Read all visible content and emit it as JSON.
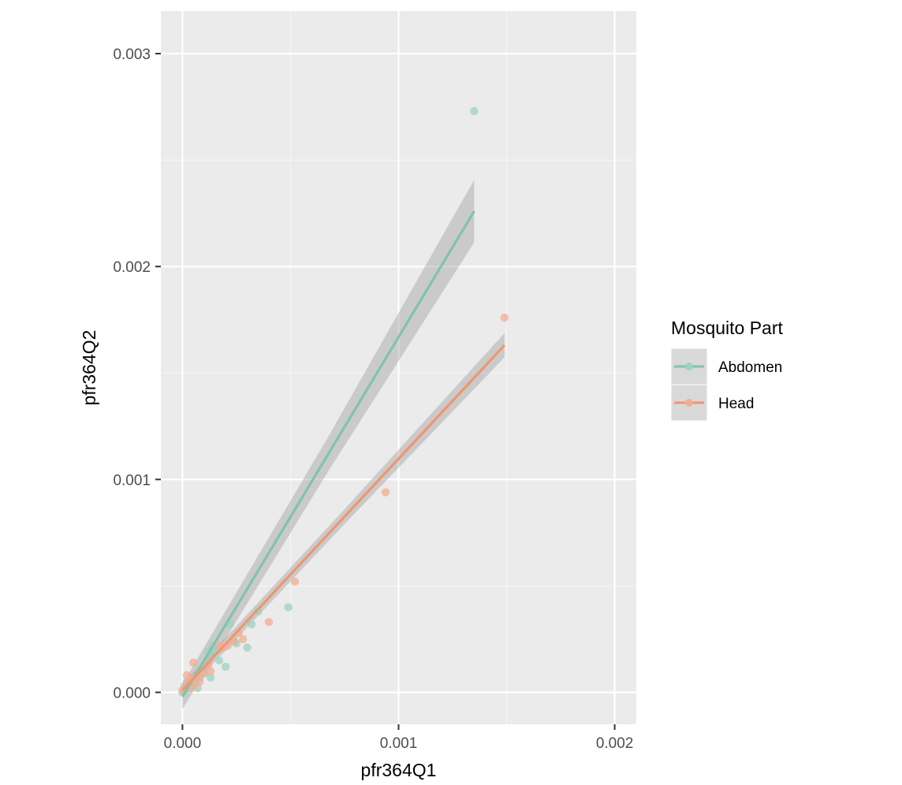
{
  "chart_data": {
    "type": "scatter",
    "title": "",
    "xlabel": "pfr364Q1",
    "ylabel": "pfr364Q2",
    "xlim": [
      -0.0001,
      0.0021
    ],
    "ylim": [
      -0.00015,
      0.0032
    ],
    "x_ticks": [
      0.0,
      0.001,
      0.002
    ],
    "x_tick_labels": [
      "0.000",
      "0.001",
      "0.002"
    ],
    "y_ticks": [
      0.0,
      0.001,
      0.002,
      0.003
    ],
    "y_tick_labels": [
      "0.000",
      "0.001",
      "0.002",
      "0.003"
    ],
    "x_minor": [
      -0.0005,
      0.0005,
      0.0015
    ],
    "y_minor": [
      0.0005,
      0.0015,
      0.0025
    ],
    "grid": true,
    "background": "#ebebeb",
    "legend": {
      "title": "Mosquito Part",
      "position": "right"
    },
    "series": [
      {
        "name": "Abdomen",
        "color": "#7fc4ab",
        "point_color": "#9fd1bf",
        "points": [
          [
            0.0,
            0.0
          ],
          [
            1e-05,
            1e-05
          ],
          [
            2e-05,
            2e-05
          ],
          [
            1e-05,
            3e-05
          ],
          [
            3e-05,
            2e-05
          ],
          [
            2e-05,
            5e-05
          ],
          [
            4e-05,
            4e-05
          ],
          [
            5e-05,
            3e-05
          ],
          [
            6e-05,
            6e-05
          ],
          [
            7e-05,
            2e-05
          ],
          [
            8e-05,
            7e-05
          ],
          [
            8e-05,
            0.00011
          ],
          [
            0.0001,
            9e-05
          ],
          [
            0.00011,
            0.00013
          ],
          [
            0.00012,
            0.00016
          ],
          [
            0.00012,
            0.00019
          ],
          [
            0.00013,
            7e-05
          ],
          [
            0.00014,
            0.0002
          ],
          [
            0.00014,
            0.00022
          ],
          [
            0.00016,
            0.0002
          ],
          [
            0.00017,
            0.00015
          ],
          [
            0.0002,
            0.00012
          ],
          [
            0.00022,
            0.00032
          ],
          [
            0.00024,
            0.00024
          ],
          [
            0.00025,
            0.00023
          ],
          [
            0.0003,
            0.00021
          ],
          [
            0.00032,
            0.00032
          ],
          [
            0.00035,
            0.00038
          ],
          [
            0.00049,
            0.0004
          ],
          [
            0.00135,
            0.00273
          ]
        ],
        "fit": {
          "x0": 0.0,
          "y0": -2e-05,
          "x1": 0.00135,
          "y1": 0.00226,
          "ci_low_end": 0.00213,
          "ci_high_end": 0.0024
        }
      },
      {
        "name": "Head",
        "color": "#f0956f",
        "point_color": "#f2ae94",
        "points": [
          [
            0.0,
            1e-05
          ],
          [
            2e-05,
            3e-05
          ],
          [
            2e-05,
            8e-05
          ],
          [
            3e-05,
            5e-05
          ],
          [
            4e-05,
            2e-05
          ],
          [
            4e-05,
            7e-05
          ],
          [
            5e-05,
            0.00014
          ],
          [
            6e-05,
            4e-05
          ],
          [
            8e-05,
            8e-05
          ],
          [
            8e-05,
            5e-05
          ],
          [
            0.0001,
            9e-05
          ],
          [
            0.00012,
            0.00013
          ],
          [
            0.00013,
            0.0001
          ],
          [
            0.00017,
            0.00022
          ],
          [
            0.00019,
            0.00021
          ],
          [
            0.00021,
            0.00022
          ],
          [
            0.00024,
            0.00024
          ],
          [
            0.00026,
            0.00028
          ],
          [
            0.00028,
            0.00025
          ],
          [
            0.0004,
            0.00033
          ],
          [
            0.00052,
            0.00052
          ],
          [
            0.00094,
            0.00094
          ],
          [
            0.00149,
            0.00176
          ]
        ],
        "fit": {
          "x0": 0.0,
          "y0": 1e-05,
          "x1": 0.00149,
          "y1": 0.00163,
          "ci_low_end": 0.00159,
          "ci_high_end": 0.00168
        }
      }
    ]
  }
}
